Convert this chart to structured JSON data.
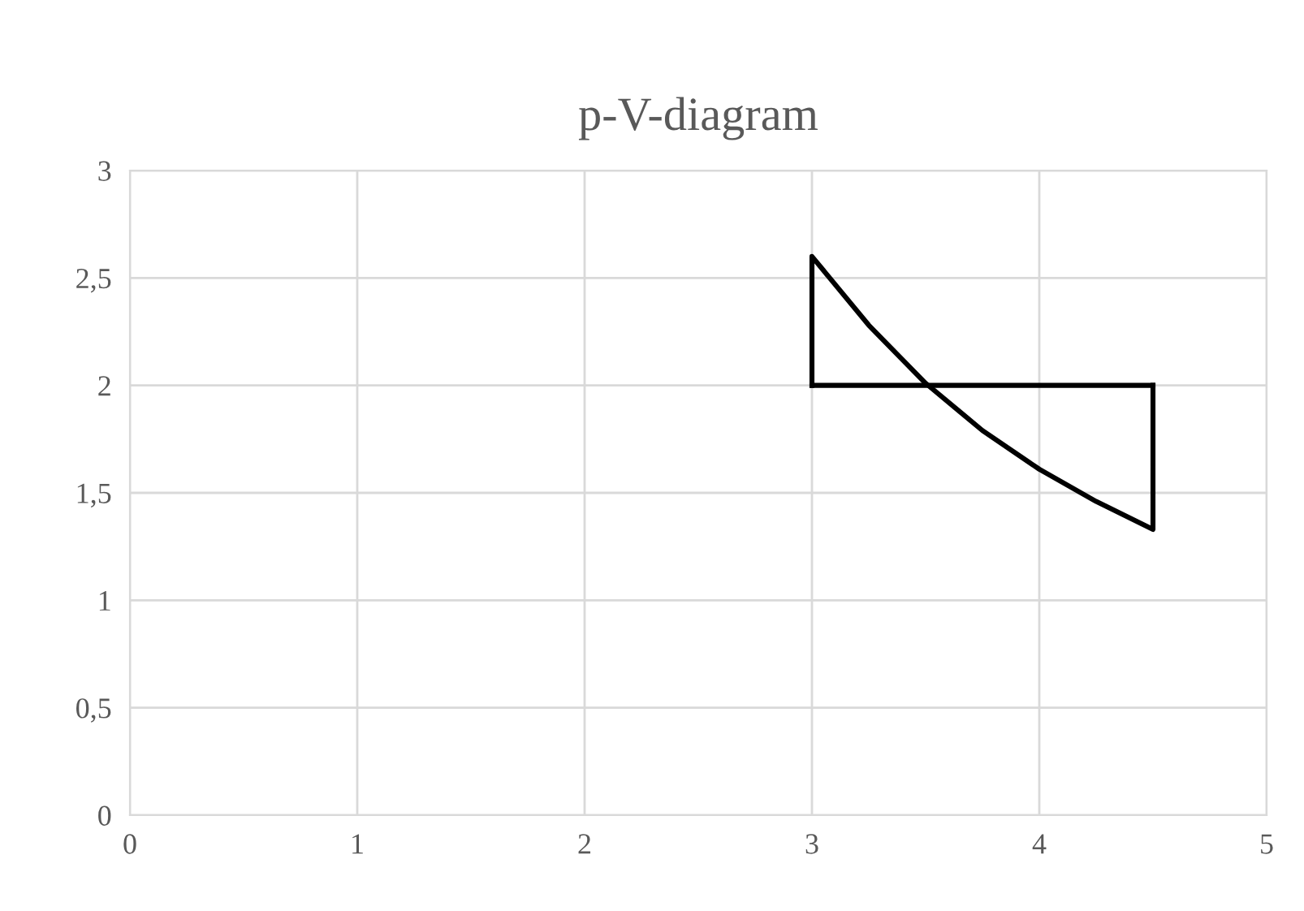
{
  "chart_data": {
    "type": "line",
    "title": "p-V-diagram",
    "series": [
      {
        "color": "#000000",
        "x": [
          3,
          3,
          3.25,
          3.5,
          3.75,
          4,
          4.25,
          4.5,
          4.5
        ],
        "values": [
          2,
          2.6,
          2.28,
          2.01,
          1.79,
          1.61,
          1.46,
          1.33,
          2
        ]
      },
      {
        "color": "#000000",
        "x": [
          3,
          4.5
        ],
        "values": [
          2,
          2
        ]
      }
    ],
    "xlim": [
      0,
      5
    ],
    "xticks": [
      0,
      1,
      2,
      3,
      4,
      5
    ],
    "ylim": [
      0,
      3
    ],
    "yticks": [
      0,
      {
        "value": 0.5,
        "label": "0,5"
      },
      1,
      {
        "value": 1.5,
        "label": "1,5"
      },
      2,
      {
        "value": 2.5,
        "label": "2,5"
      },
      3
    ],
    "grid": true,
    "marker": "none",
    "line_style": "solid",
    "legend": false
  }
}
